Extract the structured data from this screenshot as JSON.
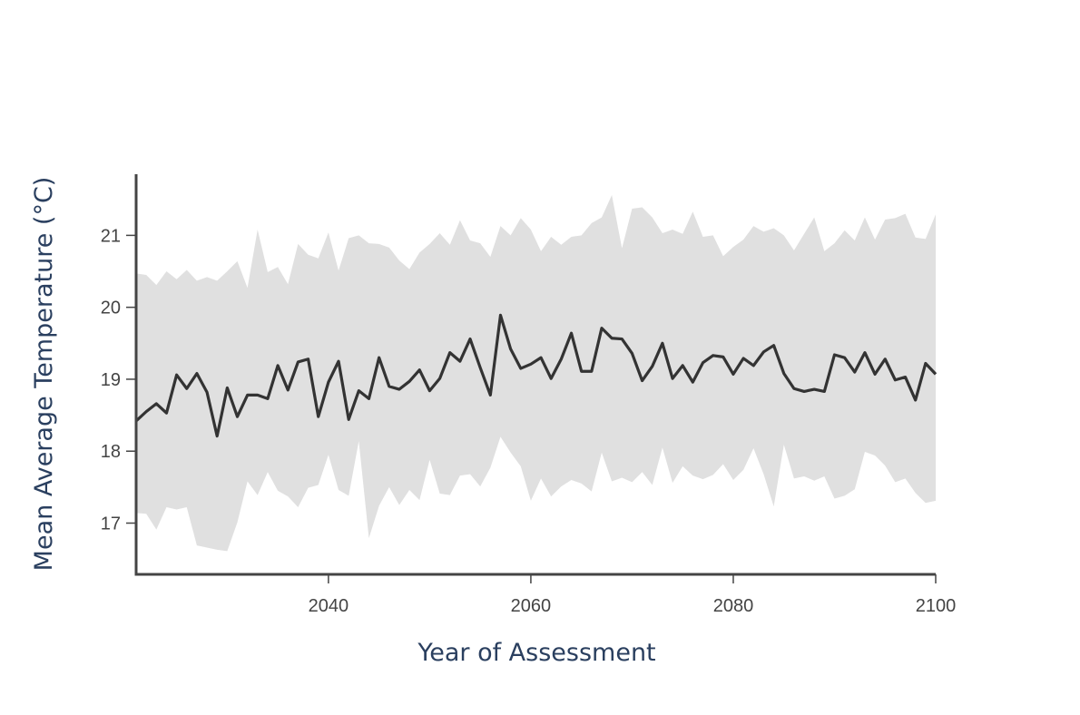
{
  "chart_data": {
    "type": "line",
    "title": "",
    "xlabel": "Year of Assessment",
    "ylabel": "Mean Average Temperature (°C)",
    "xlim": [
      2021,
      2100
    ],
    "ylim": [
      16.3,
      21.85
    ],
    "xticks": [
      2040,
      2060,
      2080,
      2100
    ],
    "yticks": [
      17,
      18,
      19,
      20,
      21
    ],
    "grid": false,
    "legend": "none",
    "colors": {
      "line": "#333333",
      "band": "#e0e0e0",
      "axis": "#444444"
    },
    "x": [
      2021,
      2022,
      2023,
      2024,
      2025,
      2026,
      2027,
      2028,
      2029,
      2030,
      2031,
      2032,
      2033,
      2034,
      2035,
      2036,
      2037,
      2038,
      2039,
      2040,
      2041,
      2042,
      2043,
      2044,
      2045,
      2046,
      2047,
      2048,
      2049,
      2050,
      2051,
      2052,
      2053,
      2054,
      2055,
      2056,
      2057,
      2058,
      2059,
      2060,
      2061,
      2062,
      2063,
      2064,
      2065,
      2066,
      2067,
      2068,
      2069,
      2070,
      2071,
      2072,
      2073,
      2074,
      2075,
      2076,
      2077,
      2078,
      2079,
      2080,
      2081,
      2082,
      2083,
      2084,
      2085,
      2086,
      2087,
      2088,
      2089,
      2090,
      2091,
      2092,
      2093,
      2094,
      2095,
      2096,
      2097,
      2098,
      2099,
      2100
    ],
    "series": [
      {
        "values": [
          18.42,
          18.55,
          18.66,
          18.53,
          19.06,
          18.87,
          19.08,
          18.82,
          18.21,
          18.88,
          18.48,
          18.78,
          18.78,
          18.73,
          19.19,
          18.85,
          19.24,
          19.28,
          18.48,
          18.96,
          19.25,
          18.44,
          18.84,
          18.73,
          19.3,
          18.9,
          18.86,
          18.97,
          19.13,
          18.84,
          19.01,
          19.37,
          19.25,
          19.56,
          19.16,
          18.78,
          19.89,
          19.42,
          19.15,
          19.21,
          19.3,
          19.01,
          19.28,
          19.64,
          19.11,
          19.11,
          19.71,
          19.57,
          19.56,
          19.36,
          18.98,
          19.18,
          19.5,
          19.01,
          19.19,
          18.96,
          19.23,
          19.33,
          19.31,
          19.07,
          19.29,
          19.19,
          19.38,
          19.47,
          19.08,
          18.87,
          18.83,
          18.86,
          18.83,
          19.34,
          19.3,
          19.1,
          19.37,
          19.07,
          19.28,
          18.99,
          19.03,
          18.71,
          19.22,
          19.07
        ]
      },
      {
        "upper": [
          20.47,
          20.45,
          20.31,
          20.5,
          20.39,
          20.52,
          20.37,
          20.42,
          20.37,
          20.5,
          20.64,
          20.27,
          21.08,
          20.49,
          20.56,
          20.32,
          20.88,
          20.73,
          20.68,
          21.04,
          20.51,
          20.96,
          21.0,
          20.89,
          20.88,
          20.83,
          20.65,
          20.53,
          20.76,
          20.88,
          21.03,
          20.87,
          21.21,
          20.93,
          20.89,
          20.7,
          21.13,
          21.0,
          21.24,
          21.08,
          20.78,
          20.98,
          20.87,
          20.98,
          21.0,
          21.17,
          21.25,
          21.56,
          20.82,
          21.37,
          21.39,
          21.25,
          21.03,
          21.08,
          21.02,
          21.33,
          20.98,
          21.0,
          20.71,
          20.84,
          20.94,
          21.13,
          21.05,
          21.1,
          21.0,
          20.79,
          21.02,
          21.25,
          20.78,
          20.89,
          21.07,
          20.93,
          21.25,
          20.94,
          21.22,
          21.24,
          21.3,
          20.97,
          20.95,
          21.29
        ],
        "lower": [
          17.14,
          17.13,
          16.91,
          17.22,
          17.19,
          17.22,
          16.69,
          16.66,
          16.63,
          16.61,
          17.01,
          17.58,
          17.39,
          17.71,
          17.45,
          17.37,
          17.22,
          17.49,
          17.53,
          17.95,
          17.46,
          17.38,
          18.14,
          16.79,
          17.24,
          17.5,
          17.25,
          17.46,
          17.32,
          17.88,
          17.41,
          17.39,
          17.66,
          17.68,
          17.51,
          17.77,
          18.2,
          17.98,
          17.79,
          17.31,
          17.62,
          17.37,
          17.51,
          17.6,
          17.55,
          17.44,
          17.98,
          17.58,
          17.63,
          17.57,
          17.71,
          17.53,
          18.05,
          17.56,
          17.79,
          17.66,
          17.61,
          17.67,
          17.82,
          17.6,
          17.74,
          18.04,
          17.68,
          17.23,
          18.09,
          17.62,
          17.65,
          17.59,
          17.65,
          17.34,
          17.38,
          17.47,
          17.99,
          17.94,
          17.8,
          17.57,
          17.62,
          17.42,
          17.28,
          17.31
        ]
      }
    ]
  }
}
